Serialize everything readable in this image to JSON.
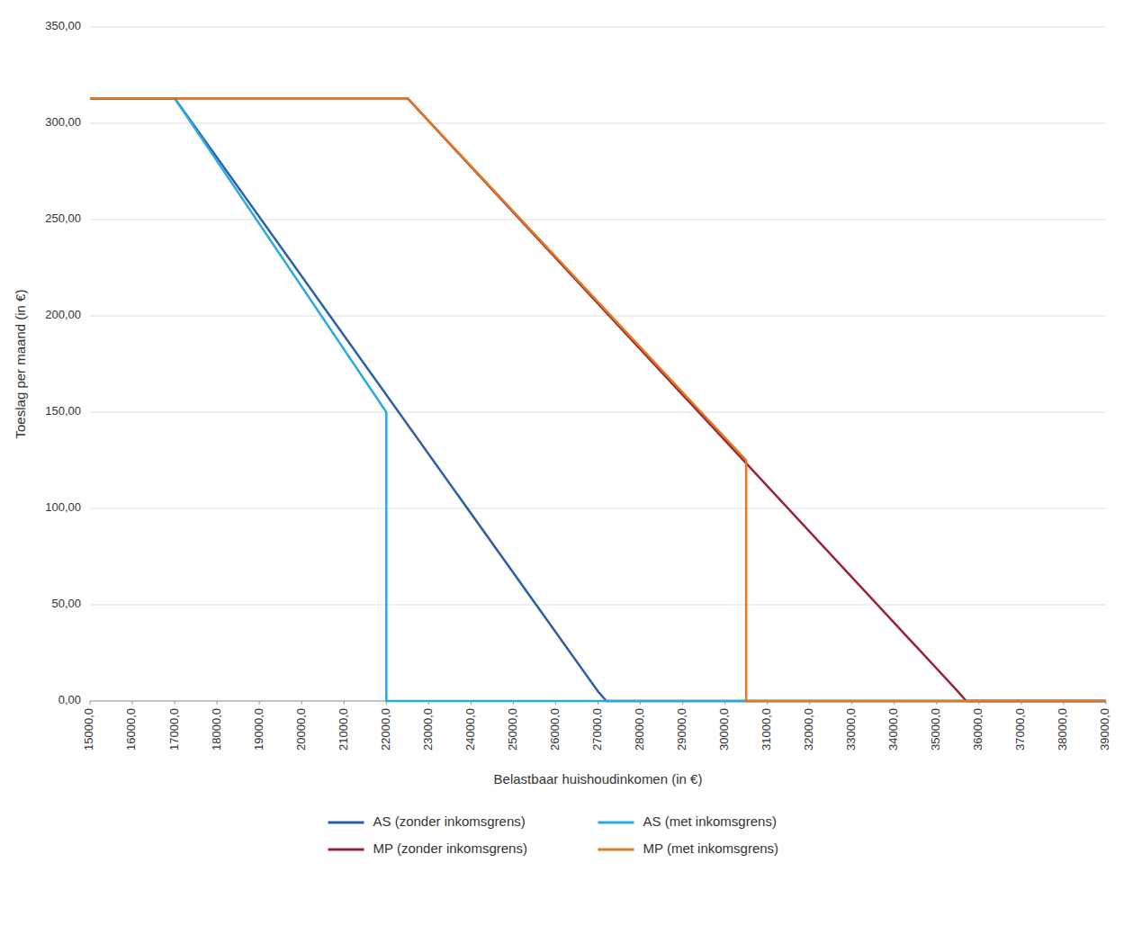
{
  "chart_data": {
    "type": "line",
    "xlabel": "Belastbaar huishoudinkomen (in €)",
    "ylabel": "Toeslag per maand (in €)",
    "xlim": [
      15000,
      39000
    ],
    "xticks": [
      {
        "value": 15000,
        "label": "15000,0"
      },
      {
        "value": 16000,
        "label": "16000,0"
      },
      {
        "value": 17000,
        "label": "17000,0"
      },
      {
        "value": 18000,
        "label": "18000,0"
      },
      {
        "value": 19000,
        "label": "19000,0"
      },
      {
        "value": 20000,
        "label": "20000,0"
      },
      {
        "value": 21000,
        "label": "21000,0"
      },
      {
        "value": 22000,
        "label": "22000,0"
      },
      {
        "value": 23000,
        "label": "23000,0"
      },
      {
        "value": 24000,
        "label": "24000,0"
      },
      {
        "value": 25000,
        "label": "25000,0"
      },
      {
        "value": 26000,
        "label": "26000,0"
      },
      {
        "value": 27000,
        "label": "27000,0"
      },
      {
        "value": 28000,
        "label": "28000,0"
      },
      {
        "value": 29000,
        "label": "29000,0"
      },
      {
        "value": 30000,
        "label": "30000,0"
      },
      {
        "value": 31000,
        "label": "31000,0"
      },
      {
        "value": 32000,
        "label": "32000,0"
      },
      {
        "value": 33000,
        "label": "33000,0"
      },
      {
        "value": 34000,
        "label": "34000,0"
      },
      {
        "value": 35000,
        "label": "35000,0"
      },
      {
        "value": 36000,
        "label": "36000,0"
      },
      {
        "value": 37000,
        "label": "37000,0"
      },
      {
        "value": 38000,
        "label": "38000,0"
      },
      {
        "value": 39000,
        "label": "39000,0"
      }
    ],
    "ylim": [
      0,
      350
    ],
    "yticks": [
      {
        "value": 0,
        "label": "0,00"
      },
      {
        "value": 50,
        "label": "50,00"
      },
      {
        "value": 100,
        "label": "100,00"
      },
      {
        "value": 150,
        "label": "150,00"
      },
      {
        "value": 200,
        "label": "200,00"
      },
      {
        "value": 250,
        "label": "250,00"
      },
      {
        "value": 300,
        "label": "300,00"
      },
      {
        "value": 350,
        "label": "350,00"
      }
    ],
    "grid": true,
    "legend": "bottom",
    "series": [
      {
        "name": "AS (zonder inkomsgrens)",
        "color": "#2E5FA3",
        "x": [
          15000,
          17000,
          27000,
          27200,
          39000
        ],
        "values": [
          313,
          313,
          5,
          0,
          0
        ]
      },
      {
        "name": "AS (met inkomsgrens)",
        "color": "#29ABE2",
        "x": [
          15000,
          17000,
          22000,
          22000,
          22200,
          39000
        ],
        "values": [
          313,
          313,
          150,
          0,
          0,
          0
        ]
      },
      {
        "name": "MP (zonder inkomsgrens)",
        "color": "#9B2335",
        "x": [
          15000,
          22500,
          35500,
          35700,
          39000
        ],
        "values": [
          313,
          313,
          5,
          0,
          0
        ]
      },
      {
        "name": "MP (met inkomsgrens)",
        "color": "#E07820",
        "x": [
          15000,
          22500,
          30500,
          30500,
          30700,
          39000
        ],
        "values": [
          313,
          313,
          125,
          0,
          0,
          0
        ]
      }
    ]
  }
}
